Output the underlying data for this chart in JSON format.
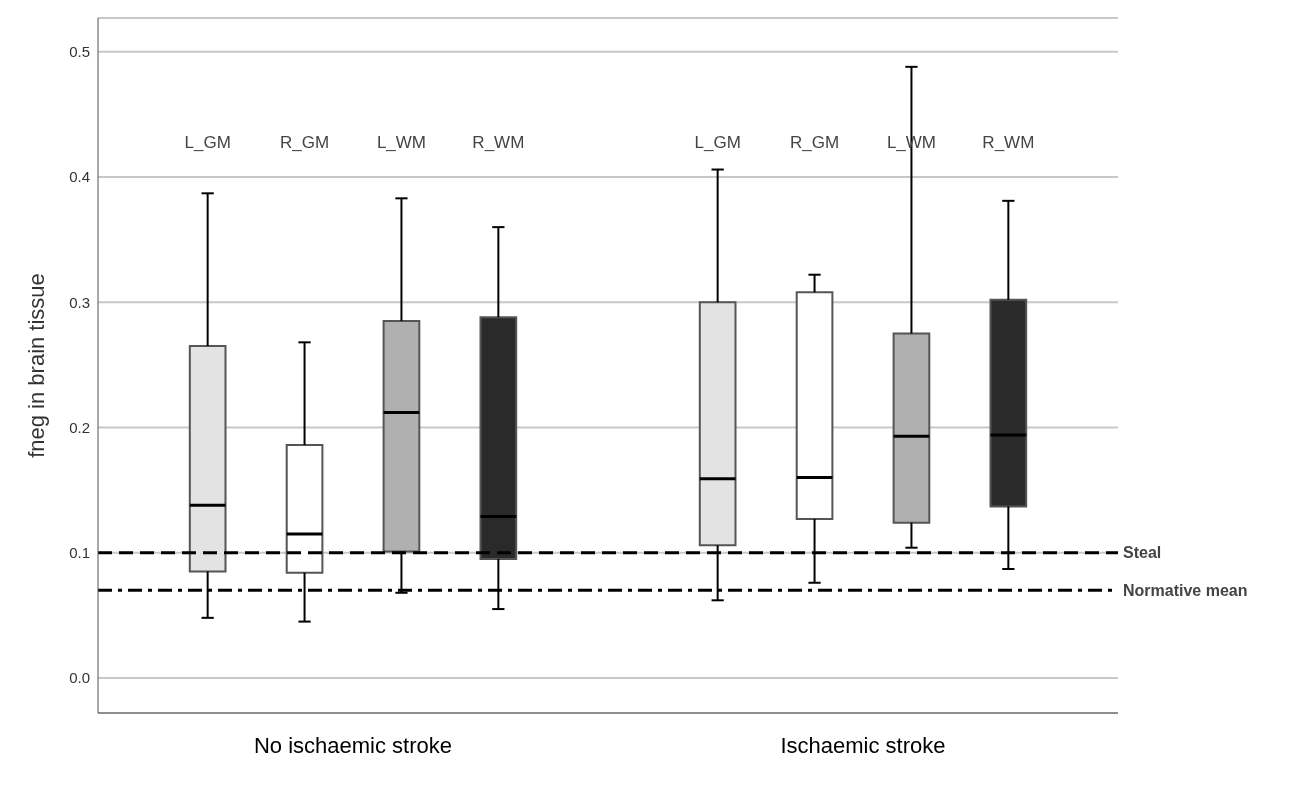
{
  "chart_data": {
    "type": "box",
    "ylabel": "fneg in brain tissue",
    "categories": [
      "L_GM",
      "R_GM",
      "L_WM",
      "R_WM",
      "L_GM",
      "R_GM",
      "L_WM",
      "R_WM"
    ],
    "colors": [
      "#e3e3e3",
      "#ffffff",
      "#b0b0b0",
      "#2a2a2a",
      "#e3e3e3",
      "#ffffff",
      "#b0b0b0",
      "#2a2a2a"
    ],
    "boxes": [
      {
        "low": 0.048,
        "q1": 0.085,
        "median": 0.138,
        "q3": 0.265,
        "high": 0.387
      },
      {
        "low": 0.045,
        "q1": 0.084,
        "median": 0.115,
        "q3": 0.186,
        "high": 0.268
      },
      {
        "low": 0.068,
        "q1": 0.101,
        "median": 0.212,
        "q3": 0.285,
        "high": 0.383
      },
      {
        "low": 0.055,
        "q1": 0.095,
        "median": 0.129,
        "q3": 0.288,
        "high": 0.36
      },
      {
        "low": 0.062,
        "q1": 0.106,
        "median": 0.159,
        "q3": 0.3,
        "high": 0.406
      },
      {
        "low": 0.076,
        "q1": 0.127,
        "median": 0.16,
        "q3": 0.308,
        "high": 0.322
      },
      {
        "low": 0.104,
        "q1": 0.124,
        "median": 0.193,
        "q3": 0.275,
        "high": 0.488
      },
      {
        "low": 0.087,
        "q1": 0.137,
        "median": 0.194,
        "q3": 0.302,
        "high": 0.381
      }
    ],
    "annotations": [
      "No ischaemic stroke",
      "Ischaemic stroke"
    ],
    "ylim": [
      -0.028,
      0.527
    ],
    "yticks": [
      {
        "value": 0,
        "label": "0.0"
      },
      {
        "value": 0.1,
        "label": "0.1"
      },
      {
        "value": 0.2,
        "label": "0.2"
      },
      {
        "value": 0.3,
        "label": "0.3"
      },
      {
        "value": 0.4,
        "label": "0.4"
      },
      {
        "value": 0.5,
        "label": "0.5"
      }
    ],
    "grid": "y",
    "ref_lines": [
      {
        "axis": "y",
        "value": 0.1,
        "label": "Steal",
        "line_style": "dashed",
        "color": "#000000"
      },
      {
        "axis": "y",
        "value": 0.07,
        "label": "Normative mean",
        "line_style": "dashdot",
        "color": "#000000"
      }
    ]
  }
}
